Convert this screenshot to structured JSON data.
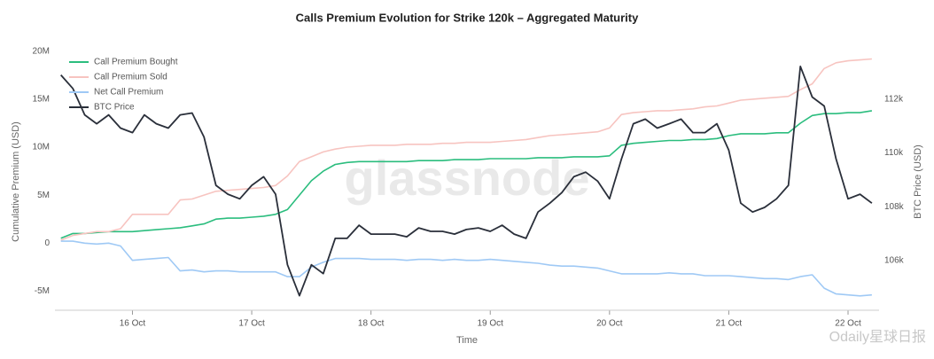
{
  "chart_data": {
    "type": "line",
    "title": "Calls Premium Evolution for Strike 120k – Aggregated Maturity",
    "x_label": "Time",
    "y_label": "Cumulative Premium (USD)",
    "y2_label": "BTC Price (USD)",
    "watermark": "glassnode",
    "corner_watermark": "Odaily星球日报",
    "legend": "top-left",
    "grid": false,
    "xlim": [
      15.35,
      22.26
    ],
    "xticks": [
      {
        "value": 16,
        "label": "16 Oct"
      },
      {
        "value": 17,
        "label": "17 Oct"
      },
      {
        "value": 18,
        "label": "18 Oct"
      },
      {
        "value": 19,
        "label": "19 Oct"
      },
      {
        "value": 20,
        "label": "20 Oct"
      },
      {
        "value": 21,
        "label": "21 Oct"
      },
      {
        "value": 22,
        "label": "22 Oct"
      }
    ],
    "ylim": [
      -7000000.0,
      21000000.0
    ],
    "yticks": [
      {
        "value": -5000000.0,
        "label": "-5M"
      },
      0,
      {
        "value": 5000000.0,
        "label": "5M"
      },
      {
        "value": 10000000.0,
        "label": "10M"
      },
      {
        "value": 15000000.0,
        "label": "15M"
      },
      {
        "value": 20000000.0,
        "label": "20M"
      }
    ],
    "y2lim": [
      104150,
      114130
    ],
    "y2ticks": [
      {
        "value": 106000,
        "label": "106k"
      },
      {
        "value": 108000,
        "label": "108k"
      },
      {
        "value": 110000,
        "label": "110k"
      },
      {
        "value": 112000,
        "label": "112k"
      }
    ],
    "x": [
      15.4,
      15.5,
      15.6,
      15.7,
      15.8,
      15.9,
      16.0,
      16.1,
      16.2,
      16.3,
      16.4,
      16.5,
      16.6,
      16.7,
      16.8,
      16.9,
      17.0,
      17.1,
      17.2,
      17.3,
      17.4,
      17.5,
      17.6,
      17.7,
      17.8,
      17.9,
      18.0,
      18.1,
      18.2,
      18.3,
      18.4,
      18.5,
      18.6,
      18.7,
      18.8,
      18.9,
      19.0,
      19.1,
      19.2,
      19.3,
      19.4,
      19.5,
      19.6,
      19.7,
      19.8,
      19.9,
      20.0,
      20.1,
      20.2,
      20.3,
      20.4,
      20.5,
      20.6,
      20.7,
      20.8,
      20.9,
      21.0,
      21.1,
      21.2,
      21.3,
      21.4,
      21.5,
      21.6,
      21.7,
      21.8,
      21.9,
      22.0,
      22.1,
      22.2
    ],
    "series": [
      {
        "name": "Call Premium Bought",
        "color": "#2bbd7e",
        "values": [
          500000.0,
          1000000.0,
          1000000.0,
          1100000.0,
          1200000.0,
          1200000.0,
          1200000.0,
          1300000.0,
          1400000.0,
          1500000.0,
          1600000.0,
          1800000.0,
          2000000.0,
          2500000.0,
          2600000.0,
          2600000.0,
          2700000.0,
          2800000.0,
          3000000.0,
          3500000.0,
          5000000.0,
          6500000.0,
          7500000.0,
          8200000.0,
          8400000.0,
          8500000.0,
          8500000.0,
          8500000.0,
          8500000.0,
          8500000.0,
          8600000.0,
          8600000.0,
          8600000.0,
          8700000.0,
          8700000.0,
          8700000.0,
          8800000.0,
          8800000.0,
          8800000.0,
          8800000.0,
          8900000.0,
          8900000.0,
          8900000.0,
          9000000.0,
          9000000.0,
          9000000.0,
          9100000.0,
          10200000.0,
          10400000.0,
          10500000.0,
          10600000.0,
          10700000.0,
          10700000.0,
          10800000.0,
          10800000.0,
          10900000.0,
          11200000.0,
          11400000.0,
          11400000.0,
          11400000.0,
          11500000.0,
          11500000.0,
          12500000.0,
          13300000.0,
          13500000.0,
          13500000.0,
          13600000.0,
          13600000.0,
          13800000.0
        ]
      },
      {
        "name": "Call Premium Sold",
        "color": "#f7c4c0",
        "values": [
          300000.0,
          800000.0,
          1000000.0,
          1200000.0,
          1200000.0,
          1500000.0,
          3000000.0,
          3000000.0,
          3000000.0,
          3000000.0,
          4500000.0,
          4600000.0,
          5000000.0,
          5400000.0,
          5500000.0,
          5600000.0,
          5700000.0,
          5800000.0,
          6000000.0,
          7000000.0,
          8500000.0,
          9000000.0,
          9500000.0,
          9800000.0,
          10000000.0,
          10100000.0,
          10200000.0,
          10200000.0,
          10200000.0,
          10300000.0,
          10300000.0,
          10300000.0,
          10400000.0,
          10400000.0,
          10500000.0,
          10500000.0,
          10500000.0,
          10600000.0,
          10700000.0,
          10800000.0,
          11000000.0,
          11200000.0,
          11300000.0,
          11400000.0,
          11500000.0,
          11600000.0,
          12000000.0,
          13400000.0,
          13600000.0,
          13700000.0,
          13800000.0,
          13800000.0,
          13900000.0,
          14000000.0,
          14200000.0,
          14300000.0,
          14600000.0,
          14900000.0,
          15000000.0,
          15100000.0,
          15200000.0,
          15300000.0,
          16000000.0,
          16600000.0,
          18200000.0,
          18800000.0,
          19000000.0,
          19100000.0,
          19200000.0
        ]
      },
      {
        "name": "Net Call Premium",
        "color": "#9fc9f5",
        "values": [
          200000.0,
          200000.0,
          0,
          -100000.0,
          0,
          -300000.0,
          -1800000.0,
          -1700000.0,
          -1600000.0,
          -1500000.0,
          -2900000.0,
          -2800000.0,
          -3000000.0,
          -2900000.0,
          -2900000.0,
          -3000000.0,
          -3000000.0,
          -3000000.0,
          -3000000.0,
          -3500000.0,
          -3500000.0,
          -2500000.0,
          -2000000.0,
          -1600000.0,
          -1600000.0,
          -1600000.0,
          -1700000.0,
          -1700000.0,
          -1700000.0,
          -1800000.0,
          -1700000.0,
          -1700000.0,
          -1800000.0,
          -1700000.0,
          -1800000.0,
          -1800000.0,
          -1700000.0,
          -1800000.0,
          -1900000.0,
          -2000000.0,
          -2100000.0,
          -2300000.0,
          -2400000.0,
          -2400000.0,
          -2500000.0,
          -2600000.0,
          -2900000.0,
          -3200000.0,
          -3200000.0,
          -3200000.0,
          -3200000.0,
          -3100000.0,
          -3200000.0,
          -3200000.0,
          -3400000.0,
          -3400000.0,
          -3400000.0,
          -3500000.0,
          -3600000.0,
          -3700000.0,
          -3700000.0,
          -3800000.0,
          -3500000.0,
          -3300000.0,
          -4700000.0,
          -5300000.0,
          -5400000.0,
          -5500000.0,
          -5400000.0
        ]
      },
      {
        "name": "BTC Price",
        "color": "#2a2f3a",
        "axis": "y2",
        "values": [
          112890,
          112390,
          111410,
          111080,
          111410,
          110920,
          110750,
          111410,
          111080,
          110920,
          111410,
          111480,
          110590,
          108790,
          108460,
          108290,
          108790,
          109110,
          108460,
          105840,
          104690,
          105840,
          105510,
          106820,
          106820,
          107310,
          106980,
          106980,
          106980,
          106880,
          107210,
          107080,
          107080,
          106980,
          107150,
          107210,
          107080,
          107310,
          106980,
          106820,
          107800,
          108130,
          108520,
          109110,
          109280,
          108950,
          108290,
          109770,
          111080,
          111250,
          110920,
          111080,
          111250,
          110750,
          110750,
          111080,
          110100,
          108130,
          107800,
          107970,
          108290,
          108790,
          113210,
          112070,
          111740,
          109770,
          108290,
          108460,
          108130
        ]
      }
    ]
  }
}
